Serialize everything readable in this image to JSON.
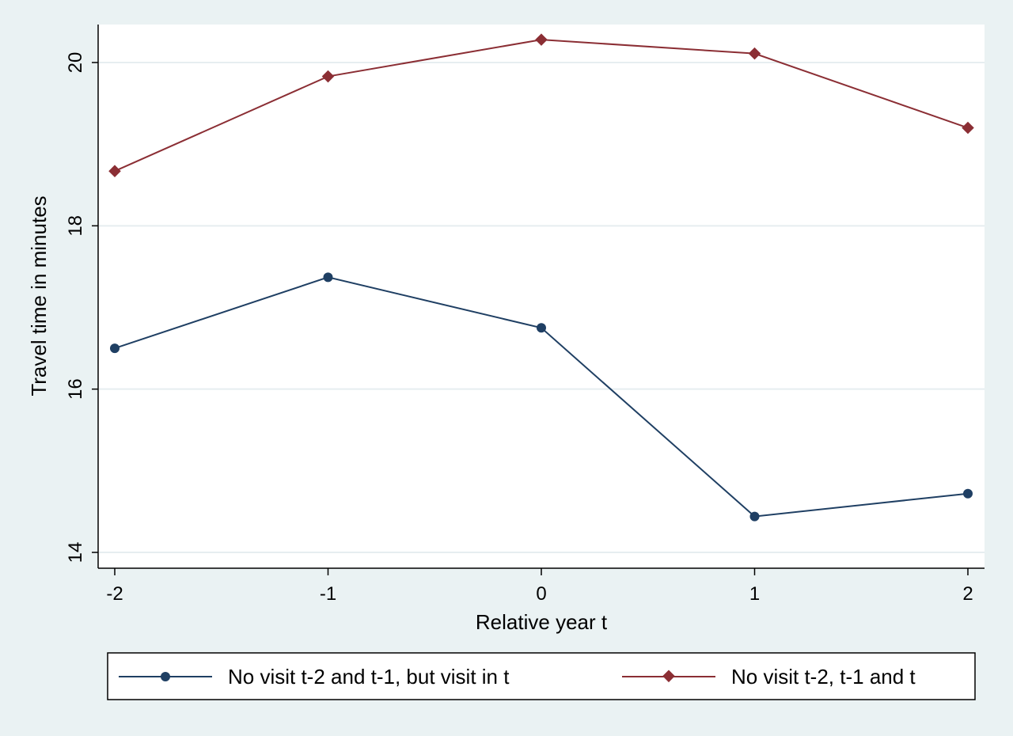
{
  "chart_data": {
    "type": "line",
    "title": "",
    "xlabel": "Relative year t",
    "ylabel": "Travel time in minutes",
    "x": [
      -2,
      -1,
      0,
      1,
      2
    ],
    "x_tick_labels": [
      "-2",
      "-1",
      "0",
      "1",
      "2"
    ],
    "xlim": [
      -2,
      2
    ],
    "ylim": [
      14,
      20
    ],
    "y_ticks": [
      14,
      16,
      18,
      20
    ],
    "y_tick_labels": [
      "14",
      "16",
      "18",
      "20"
    ],
    "grid": true,
    "legend_position": "bottom",
    "series": [
      {
        "name": "No visit t-2 and t-1, but visit in t",
        "values": [
          16.5,
          17.37,
          16.75,
          14.44,
          14.72
        ],
        "color": "#1f3f63",
        "marker": "circle"
      },
      {
        "name": "No visit t-2, t-1 and t",
        "values": [
          18.67,
          19.83,
          20.28,
          20.11,
          19.2
        ],
        "color": "#8b2e34",
        "marker": "diamond"
      }
    ]
  }
}
